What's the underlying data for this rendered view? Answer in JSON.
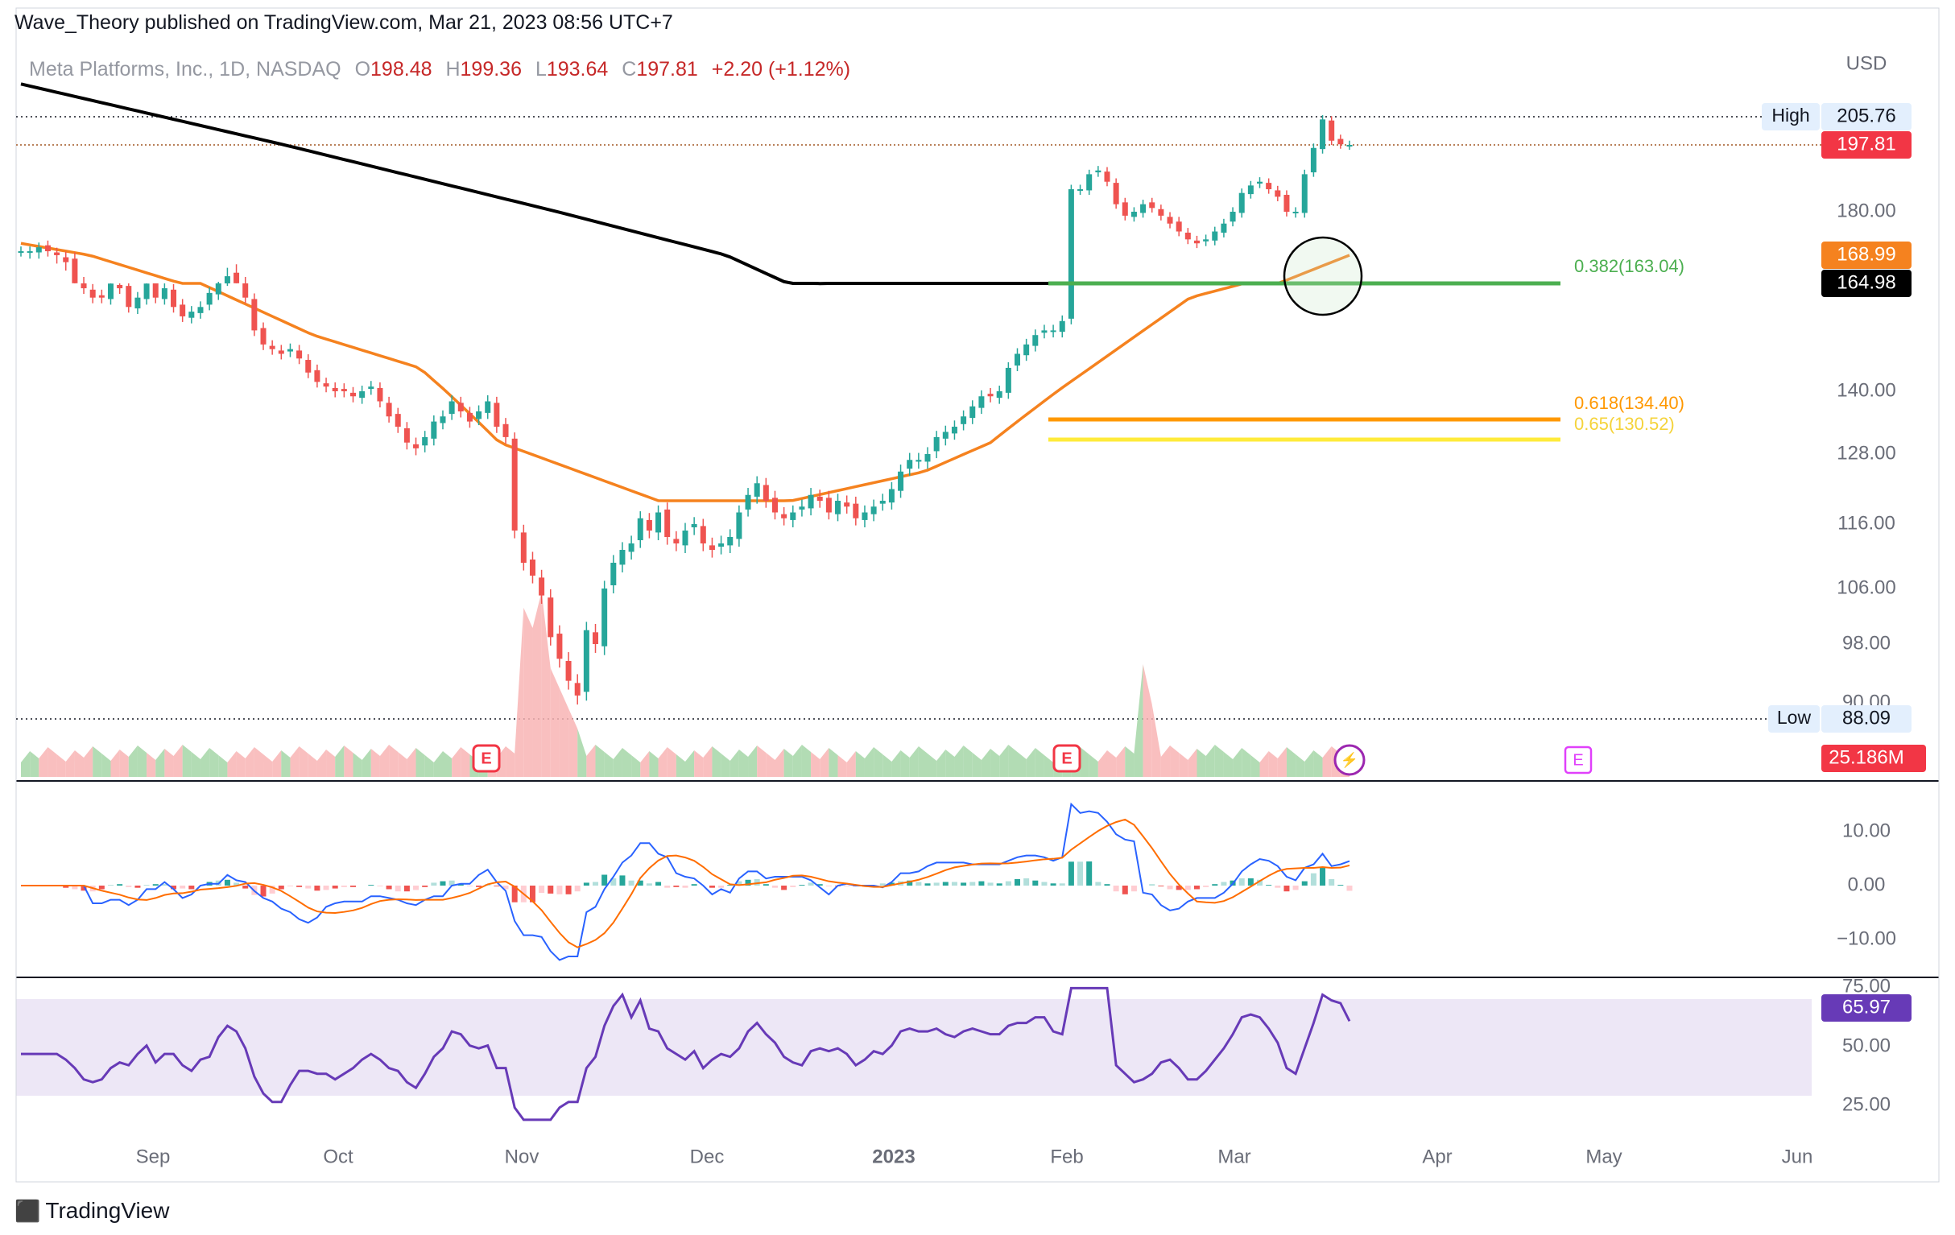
{
  "publisher_line": "Wave_Theory published on TradingView.com, Mar 21, 2023 08:56 UTC+7",
  "brand": "TradingView",
  "symbol": {
    "name": "Meta Platforms, Inc., 1D, NASDAQ",
    "o_label": "O",
    "o": "198.48",
    "h_label": "H",
    "h": "199.36",
    "l_label": "L",
    "l": "193.64",
    "c_label": "C",
    "c": "197.81",
    "change": "+2.20 (+1.12%)"
  },
  "currency": "USD",
  "tags": {
    "high_label": "High",
    "high_value": "205.76",
    "low_label": "Low",
    "low_value": "88.09",
    "last_price": "197.81",
    "ma50": "168.99",
    "ma200": "164.98",
    "volume": "25.186M",
    "rsi": "65.97"
  },
  "fib_labels": {
    "f382": "0.382(163.04)",
    "f618": "0.618(134.40)",
    "f65": "0.65(130.52)"
  },
  "colors": {
    "up": "#26a69a",
    "down": "#ef5350",
    "ma50": "#f5821f",
    "ma200": "#000000",
    "fib382": "#4caf50",
    "fib618": "#ff9800",
    "fib65": "#ffeb3b",
    "macd": "#2962ff",
    "signal": "#ff6d00",
    "rsi": "#673ab7",
    "last_price_bg": "#f23645",
    "rsi_bg": "#ede7f6"
  },
  "chart_data": {
    "type": "candlestick",
    "ticker": "META",
    "timeframe": "1D",
    "price_axis": {
      "ticks": [
        "180.00",
        "140.00",
        "128.00",
        "116.00",
        "106.00",
        "98.00",
        "90.00"
      ]
    },
    "time_axis": {
      "ticks": [
        "Sep",
        "Oct",
        "Nov",
        "Dec",
        "2023",
        "Feb",
        "Mar",
        "Apr",
        "May",
        "Jun"
      ]
    },
    "high": 205.76,
    "low": 88.09,
    "last_close": 197.81,
    "fibonacci_levels": [
      {
        "ratio": 0.382,
        "price": 163.04
      },
      {
        "ratio": 0.618,
        "price": 134.4
      },
      {
        "ratio": 0.65,
        "price": 130.52
      }
    ],
    "moving_averages": [
      {
        "value": 168.99
      },
      {
        "value": 164.98
      }
    ],
    "closes_approx": [
      170,
      170,
      171,
      170,
      169,
      168,
      165,
      162,
      160,
      160,
      163,
      162,
      158,
      160,
      163,
      160,
      162,
      158,
      156,
      157,
      158,
      161,
      164,
      166,
      165,
      160,
      153,
      150,
      149,
      148,
      149,
      147,
      144,
      142,
      141,
      140,
      140,
      139,
      140,
      141,
      138,
      135,
      133,
      130,
      129,
      131,
      134,
      135,
      138,
      136,
      134,
      136,
      138,
      133,
      131,
      115,
      110,
      108,
      105,
      99,
      96,
      93,
      91,
      100,
      98,
      106,
      110,
      112,
      113,
      117,
      115,
      118,
      114,
      113,
      115,
      116,
      113,
      112,
      113,
      114,
      118,
      121,
      123,
      120,
      118,
      117,
      118,
      119,
      121,
      120,
      118,
      120,
      119,
      117,
      118,
      119,
      120,
      122,
      125,
      127,
      127,
      128,
      131,
      132,
      133,
      135,
      137,
      139,
      139,
      140,
      145,
      148,
      150,
      152,
      153,
      153,
      155,
      186,
      186,
      190,
      191,
      188,
      182,
      179,
      180,
      182,
      181,
      179,
      177,
      175,
      173,
      172,
      173,
      175,
      177,
      180,
      185,
      187,
      188,
      186,
      184,
      180,
      180,
      190,
      197,
      205,
      199,
      198,
      197.81
    ],
    "volume": {
      "last": "25.186M"
    },
    "macd": {
      "axis_ticks": [
        "10.00",
        "0.00",
        "−10.00"
      ]
    },
    "rsi": {
      "axis_ticks": [
        "75.00",
        "50.00",
        "25.00"
      ],
      "last": 65.97
    }
  }
}
